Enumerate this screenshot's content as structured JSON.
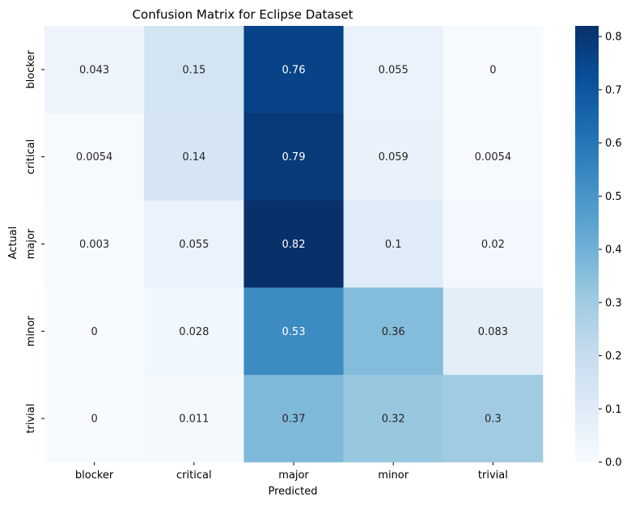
{
  "chart_data": {
    "type": "heatmap",
    "title": "Confusion Matrix for Eclipse Dataset",
    "xlabel": "Predicted",
    "ylabel": "Actual",
    "x_categories": [
      "blocker",
      "critical",
      "major",
      "minor",
      "trivial"
    ],
    "y_categories": [
      "blocker",
      "critical",
      "major",
      "minor",
      "trivial"
    ],
    "values": [
      [
        0.043,
        0.15,
        0.76,
        0.055,
        0
      ],
      [
        0.0054,
        0.14,
        0.79,
        0.059,
        0.0054
      ],
      [
        0.003,
        0.055,
        0.82,
        0.1,
        0.02
      ],
      [
        0,
        0.028,
        0.53,
        0.36,
        0.083
      ],
      [
        0,
        0.011,
        0.37,
        0.32,
        0.3
      ]
    ],
    "value_labels": [
      [
        "0.043",
        "0.15",
        "0.76",
        "0.055",
        "0"
      ],
      [
        "0.0054",
        "0.14",
        "0.79",
        "0.059",
        "0.0054"
      ],
      [
        "0.003",
        "0.055",
        "0.82",
        "0.1",
        "0.02"
      ],
      [
        "0",
        "0.028",
        "0.53",
        "0.36",
        "0.083"
      ],
      [
        "0",
        "0.011",
        "0.37",
        "0.32",
        "0.3"
      ]
    ],
    "colormap": "Blues",
    "vmin": 0,
    "vmax": 0.82,
    "colorbar_ticks": [
      "0.0",
      "0.1",
      "0.2",
      "0.3",
      "0.4",
      "0.5",
      "0.6",
      "0.7",
      "0.8"
    ],
    "colorbar_tick_values": [
      0,
      0.1,
      0.2,
      0.3,
      0.4,
      0.5,
      0.6,
      0.7,
      0.8
    ]
  }
}
